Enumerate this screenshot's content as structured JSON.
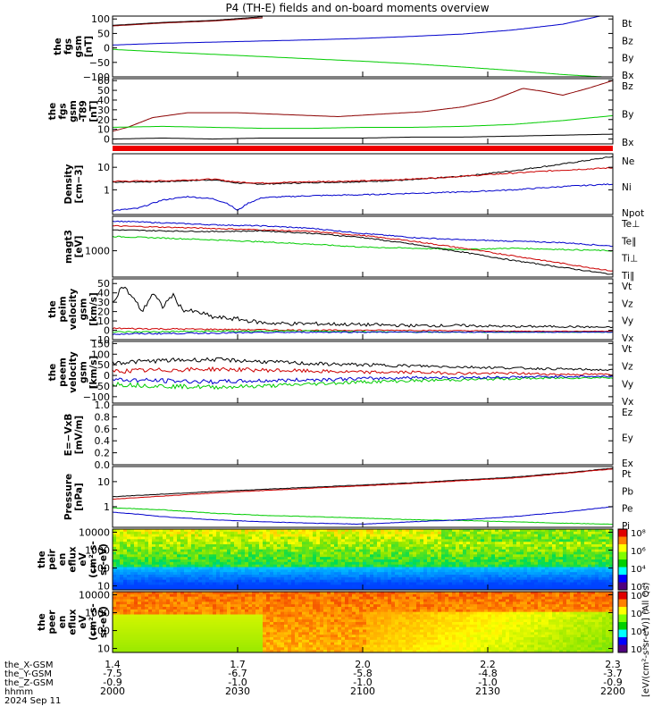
{
  "title": "P4 (TH-E) fields and on-board moments overview",
  "footer": {
    "rows": [
      "the_X-GSM",
      "the_Y-GSM",
      "the_Z-GSM",
      "hhmm",
      "2024 Sep 11"
    ],
    "ticks": [
      {
        "x": "1.4",
        "y": "-7.5",
        "z": "-0.9",
        "t": "2000"
      },
      {
        "x": "1.7",
        "y": "-6.7",
        "z": "-1.0",
        "t": "2030"
      },
      {
        "x": "2.0",
        "y": "-5.8",
        "z": "-1.0",
        "t": "2100"
      },
      {
        "x": "2.2",
        "y": "-4.8",
        "z": "-1.0",
        "t": "2130"
      },
      {
        "x": "2.3",
        "y": "-3.7",
        "z": "-0.9",
        "t": "2200"
      }
    ]
  },
  "colors": {
    "black": "#000000",
    "red": "#cc0000",
    "green": "#00cc00",
    "blue": "#0000cc",
    "darkred": "#8b0000"
  },
  "chart_data": [
    {
      "type": "line",
      "ylabel": [
        "the",
        "fgs",
        "gsm",
        "[nT]"
      ],
      "yticks": [
        "100",
        "50",
        "0",
        "−50",
        "−100"
      ],
      "ylim": [
        -100,
        110
      ],
      "legend": [
        {
          "name": "Bt",
          "color": "#000000"
        },
        {
          "name": "Bz",
          "color": "#cc0000"
        },
        {
          "name": "By",
          "color": "#00cc00"
        },
        {
          "name": "Bx",
          "color": "#0000cc"
        }
      ],
      "series": [
        {
          "name": "Bt",
          "color": "#000000",
          "x": [
            0,
            0.1,
            0.2,
            0.3
          ],
          "y": [
            78,
            88,
            95,
            108
          ]
        },
        {
          "name": "Bz",
          "color": "#8b0000",
          "x": [
            0,
            0.1,
            0.2,
            0.3
          ],
          "y": [
            76,
            86,
            93,
            104
          ]
        },
        {
          "name": "Bx",
          "color": "#0000cc",
          "x": [
            0,
            0.1,
            0.2,
            0.3,
            0.4,
            0.5,
            0.6,
            0.7,
            0.8,
            0.9,
            0.98
          ],
          "y": [
            10,
            16,
            20,
            24,
            28,
            33,
            40,
            48,
            62,
            82,
            112
          ]
        },
        {
          "name": "By",
          "color": "#00cc00",
          "x": [
            0,
            0.1,
            0.2,
            0.3,
            0.4,
            0.5,
            0.6,
            0.7,
            0.8,
            0.9,
            1.0
          ],
          "y": [
            -5,
            -14,
            -22,
            -30,
            -38,
            -46,
            -55,
            -66,
            -78,
            -92,
            -102
          ]
        }
      ]
    },
    {
      "type": "line",
      "ylabel": [
        "the",
        "fgs",
        "gsm",
        "-T89",
        "[nT]"
      ],
      "yticks": [
        "60",
        "50",
        "40",
        "30",
        "20",
        "10",
        "0"
      ],
      "ylim": [
        -5,
        62
      ],
      "legend": [
        {
          "name": "Bz",
          "color": "#cc0000"
        },
        {
          "name": "By",
          "color": "#00cc00"
        },
        {
          "name": "Bx",
          "color": "#000000"
        }
      ],
      "series": [
        {
          "name": "Bz",
          "color": "#8b0000",
          "x": [
            0,
            0.03,
            0.08,
            0.15,
            0.25,
            0.35,
            0.45,
            0.55,
            0.62,
            0.7,
            0.76,
            0.82,
            0.86,
            0.9,
            0.95,
            1.0
          ],
          "y": [
            8,
            12,
            22,
            27,
            27,
            25,
            23,
            26,
            28,
            33,
            40,
            52,
            49,
            45,
            52,
            60
          ]
        },
        {
          "name": "By",
          "color": "#00cc00",
          "x": [
            0,
            0.1,
            0.2,
            0.3,
            0.4,
            0.5,
            0.6,
            0.7,
            0.8,
            0.9,
            1.0
          ],
          "y": [
            12,
            13,
            12,
            11,
            11,
            12,
            12,
            13,
            15,
            19,
            24
          ]
        },
        {
          "name": "Bx",
          "color": "#000000",
          "x": [
            0,
            0.1,
            0.2,
            0.3,
            0.4,
            0.5,
            0.6,
            0.7,
            0.8,
            0.9,
            1.0
          ],
          "y": [
            0,
            1,
            0,
            1,
            1,
            1,
            2,
            2,
            3,
            4,
            5
          ]
        }
      ]
    },
    {
      "type": "line",
      "ylog": true,
      "ylabel": [
        "Density",
        "[cm−3]"
      ],
      "yticks": [
        "10",
        "1"
      ],
      "ylim": [
        0.08,
        40
      ],
      "legend": [
        {
          "name": "Ne",
          "color": "#cc0000"
        },
        {
          "name": "Ni",
          "color": "#000000"
        },
        {
          "name": "Npot",
          "color": "#0000cc"
        }
      ],
      "series": [
        {
          "name": "Ni",
          "color": "#000000",
          "x": [
            0,
            0.1,
            0.2,
            0.25,
            0.3,
            0.4,
            0.5,
            0.6,
            0.7,
            0.8,
            0.9,
            1.0
          ],
          "y": [
            2.2,
            2.3,
            2.8,
            2.0,
            1.8,
            2.1,
            2.3,
            2.8,
            4.0,
            7.0,
            14,
            30
          ]
        },
        {
          "name": "Ne",
          "color": "#cc0000",
          "x": [
            0,
            0.1,
            0.2,
            0.25,
            0.3,
            0.4,
            0.5,
            0.6,
            0.7,
            0.8,
            0.9,
            1.0
          ],
          "y": [
            2.4,
            2.5,
            3.0,
            2.2,
            2.0,
            2.3,
            2.5,
            3.0,
            4.0,
            5.5,
            7.5,
            9.5
          ]
        },
        {
          "name": "Npot",
          "color": "#0000cc",
          "x": [
            0,
            0.05,
            0.1,
            0.15,
            0.2,
            0.23,
            0.25,
            0.27,
            0.3,
            0.4,
            0.5,
            0.6,
            0.7,
            0.8,
            0.9,
            1.0
          ],
          "y": [
            0.12,
            0.15,
            0.35,
            0.5,
            0.4,
            0.25,
            0.12,
            0.25,
            0.45,
            0.55,
            0.6,
            0.7,
            0.8,
            1.0,
            1.4,
            1.8
          ]
        }
      ]
    },
    {
      "type": "line",
      "ylog": true,
      "ylabel": [
        "magt3",
        "[eV]"
      ],
      "yticks": [
        "1000"
      ],
      "ylim": [
        150,
        12000
      ],
      "legend": [
        {
          "name": "Te⊥",
          "color": "#cc0000"
        },
        {
          "name": "Te∥",
          "color": "#000000"
        },
        {
          "name": "Ti⊥",
          "color": "#0000cc"
        },
        {
          "name": "Ti∥",
          "color": "#00cc00"
        }
      ],
      "series": [
        {
          "name": "Ti⊥",
          "color": "#0000cc",
          "x": [
            0,
            0.1,
            0.2,
            0.3,
            0.4,
            0.5,
            0.6,
            0.7,
            0.8,
            0.9,
            1.0
          ],
          "y": [
            8500,
            7500,
            6500,
            6000,
            5000,
            3500,
            2600,
            2200,
            2000,
            1800,
            1400
          ]
        },
        {
          "name": "Ti∥",
          "color": "#00cc00",
          "x": [
            0,
            0.1,
            0.2,
            0.3,
            0.4,
            0.5,
            0.6,
            0.7,
            0.8,
            0.9,
            1.0
          ],
          "y": [
            2800,
            2500,
            2200,
            1900,
            1600,
            1300,
            1200,
            1100,
            1200,
            1100,
            1000
          ]
        },
        {
          "name": "Te⊥",
          "color": "#cc0000",
          "x": [
            0,
            0.1,
            0.2,
            0.3,
            0.4,
            0.5,
            0.6,
            0.7,
            0.8,
            0.9,
            1.0
          ],
          "y": [
            6000,
            5500,
            5000,
            4500,
            4000,
            3000,
            2000,
            1200,
            700,
            400,
            230
          ]
        },
        {
          "name": "Te∥",
          "color": "#000000",
          "x": [
            0,
            0.1,
            0.2,
            0.3,
            0.4,
            0.5,
            0.6,
            0.7,
            0.8,
            0.9,
            1.0
          ],
          "y": [
            4500,
            4200,
            4000,
            4200,
            3500,
            2600,
            1600,
            900,
            500,
            300,
            180
          ]
        }
      ]
    },
    {
      "type": "line",
      "ylabel": [
        "the",
        "peim",
        "velocity",
        "gsm",
        "[km/s]"
      ],
      "yticks": [
        "50",
        "40",
        "30",
        "20",
        "10",
        "0",
        "−10"
      ],
      "ylim": [
        -10,
        55
      ],
      "legend": [
        {
          "name": "Vt",
          "color": "#000000"
        },
        {
          "name": "Vz",
          "color": "#cc0000"
        },
        {
          "name": "Vy",
          "color": "#00cc00"
        },
        {
          "name": "Vx",
          "color": "#0000cc"
        }
      ],
      "series": [
        {
          "name": "Vt",
          "color": "#000000",
          "x": [
            0,
            0.02,
            0.04,
            0.06,
            0.08,
            0.1,
            0.12,
            0.14,
            0.16,
            0.18,
            0.2,
            0.25,
            0.3,
            0.35,
            0.4,
            0.5,
            0.6,
            0.7,
            0.8,
            0.9,
            1.0
          ],
          "y": [
            30,
            48,
            35,
            20,
            40,
            25,
            38,
            22,
            20,
            18,
            14,
            12,
            8,
            7,
            7,
            6,
            5,
            5,
            4,
            4,
            3
          ]
        },
        {
          "name": "Vz",
          "color": "#cc0000",
          "x": [
            0,
            0.2,
            0.4,
            0.6,
            0.8,
            1.0
          ],
          "y": [
            2,
            1,
            0,
            0,
            -1,
            -1
          ]
        },
        {
          "name": "Vy",
          "color": "#00cc00",
          "x": [
            0,
            0.2,
            0.4,
            0.6,
            0.8,
            1.0
          ],
          "y": [
            -2,
            -1,
            -1,
            -2,
            -2,
            -2
          ]
        },
        {
          "name": "Vx",
          "color": "#0000cc",
          "x": [
            0,
            0.2,
            0.4,
            0.6,
            0.8,
            1.0
          ],
          "y": [
            -4,
            -3,
            -2,
            -2,
            -2,
            -2
          ]
        }
      ]
    },
    {
      "type": "line",
      "ylabel": [
        "the",
        "peem",
        "velocity",
        "gsm",
        "[km/s]"
      ],
      "yticks": [
        "150",
        "100",
        "50",
        "0",
        "−50",
        "−100"
      ],
      "ylim": [
        -130,
        160
      ],
      "legend": [
        {
          "name": "Vt",
          "color": "#000000"
        },
        {
          "name": "Vz",
          "color": "#cc0000"
        },
        {
          "name": "Vy",
          "color": "#00cc00"
        },
        {
          "name": "Vx",
          "color": "#0000cc"
        }
      ],
      "series": [
        {
          "name": "Vt",
          "color": "#000000",
          "x": [
            0,
            0.1,
            0.2,
            0.3,
            0.4,
            0.5,
            0.6,
            0.7,
            0.8,
            0.9,
            1.0
          ],
          "y": [
            60,
            70,
            75,
            65,
            55,
            50,
            45,
            40,
            35,
            30,
            25
          ]
        },
        {
          "name": "Vz",
          "color": "#cc0000",
          "x": [
            0,
            0.1,
            0.2,
            0.3,
            0.4,
            0.5,
            0.6,
            0.7,
            0.8,
            0.9,
            1.0
          ],
          "y": [
            20,
            25,
            30,
            25,
            20,
            15,
            15,
            10,
            10,
            5,
            5
          ]
        },
        {
          "name": "Vy",
          "color": "#00cc00",
          "x": [
            0,
            0.1,
            0.2,
            0.3,
            0.4,
            0.5,
            0.6,
            0.7,
            0.8,
            0.9,
            1.0
          ],
          "y": [
            -40,
            -50,
            -55,
            -50,
            -40,
            -30,
            -25,
            -20,
            -15,
            -12,
            -10
          ]
        },
        {
          "name": "Vx",
          "color": "#0000cc",
          "x": [
            0,
            0.1,
            0.2,
            0.3,
            0.4,
            0.5,
            0.6,
            0.7,
            0.8,
            0.9,
            1.0
          ],
          "y": [
            -20,
            -25,
            -30,
            -25,
            -20,
            -15,
            -10,
            -10,
            -8,
            -5,
            -5
          ]
        }
      ]
    },
    {
      "type": "line",
      "ylabel": [
        "E=−VxB",
        "[mV/m]"
      ],
      "yticks": [
        "1.0",
        "0.8",
        "0.6",
        "0.4",
        "0.2",
        "0.0"
      ],
      "ylim": [
        0,
        1
      ],
      "legend": [
        {
          "name": "Ez",
          "color": "#cc0000"
        },
        {
          "name": "Ey",
          "color": "#00cc00"
        },
        {
          "name": "Ex",
          "color": "#0000cc"
        }
      ],
      "series": []
    },
    {
      "type": "line",
      "ylog": true,
      "ylabel": [
        "Pressure",
        "[nPa]"
      ],
      "yticks": [
        "10",
        "1"
      ],
      "ylim": [
        0.15,
        40
      ],
      "legend": [
        {
          "name": "Pt",
          "color": "#000000"
        },
        {
          "name": "Pb",
          "color": "#cc0000"
        },
        {
          "name": "Pe",
          "color": "#00cc00"
        },
        {
          "name": "Pi",
          "color": "#0000cc"
        }
      ],
      "series": [
        {
          "name": "Pt",
          "color": "#000000",
          "x": [
            0,
            0.2,
            0.4,
            0.6,
            0.8,
            0.9,
            1.0
          ],
          "y": [
            2.5,
            4,
            6,
            9,
            15,
            22,
            34
          ]
        },
        {
          "name": "Pb",
          "color": "#cc0000",
          "x": [
            0,
            0.2,
            0.4,
            0.6,
            0.8,
            0.9,
            1.0
          ],
          "y": [
            2.0,
            3.5,
            5.5,
            8.5,
            14,
            21,
            32
          ]
        },
        {
          "name": "Pe",
          "color": "#00cc00",
          "x": [
            0,
            0.1,
            0.2,
            0.3,
            0.4,
            0.5,
            0.6,
            0.7,
            0.8,
            0.9,
            1.0
          ],
          "y": [
            0.9,
            0.75,
            0.55,
            0.45,
            0.4,
            0.35,
            0.3,
            0.28,
            0.25,
            0.22,
            0.2
          ]
        },
        {
          "name": "Pi",
          "color": "#0000cc",
          "x": [
            0,
            0.05,
            0.1,
            0.2,
            0.3,
            0.4,
            0.5,
            0.6,
            0.7,
            0.8,
            0.9,
            1.0
          ],
          "y": [
            0.6,
            0.5,
            0.4,
            0.3,
            0.25,
            0.22,
            0.2,
            0.25,
            0.3,
            0.4,
            0.6,
            1.0
          ]
        }
      ]
    },
    {
      "type": "heatmap",
      "ylog": true,
      "ylabel": [
        "the",
        "peir",
        "en",
        "eflux",
        "eV",
        "(cm²-s-",
        "sr-eV)"
      ],
      "yticks": [
        "10000",
        "1000",
        "100",
        "10"
      ],
      "ylim": [
        6,
        15000
      ]
    },
    {
      "type": "heatmap",
      "ylog": true,
      "ylabel": [
        "the",
        "peer",
        "en",
        "eflux",
        "eV",
        "(cm²-s-",
        "sr-eV)"
      ],
      "yticks": [
        "10000",
        "1000",
        "100",
        "10"
      ],
      "ylim": [
        6,
        15000
      ]
    }
  ],
  "colorbar": {
    "label": "[eV/(cm²-s-sr-eV)] (All Qs)",
    "ticks": [
      "10⁸",
      "10⁶",
      "10⁴",
      "10²"
    ]
  }
}
